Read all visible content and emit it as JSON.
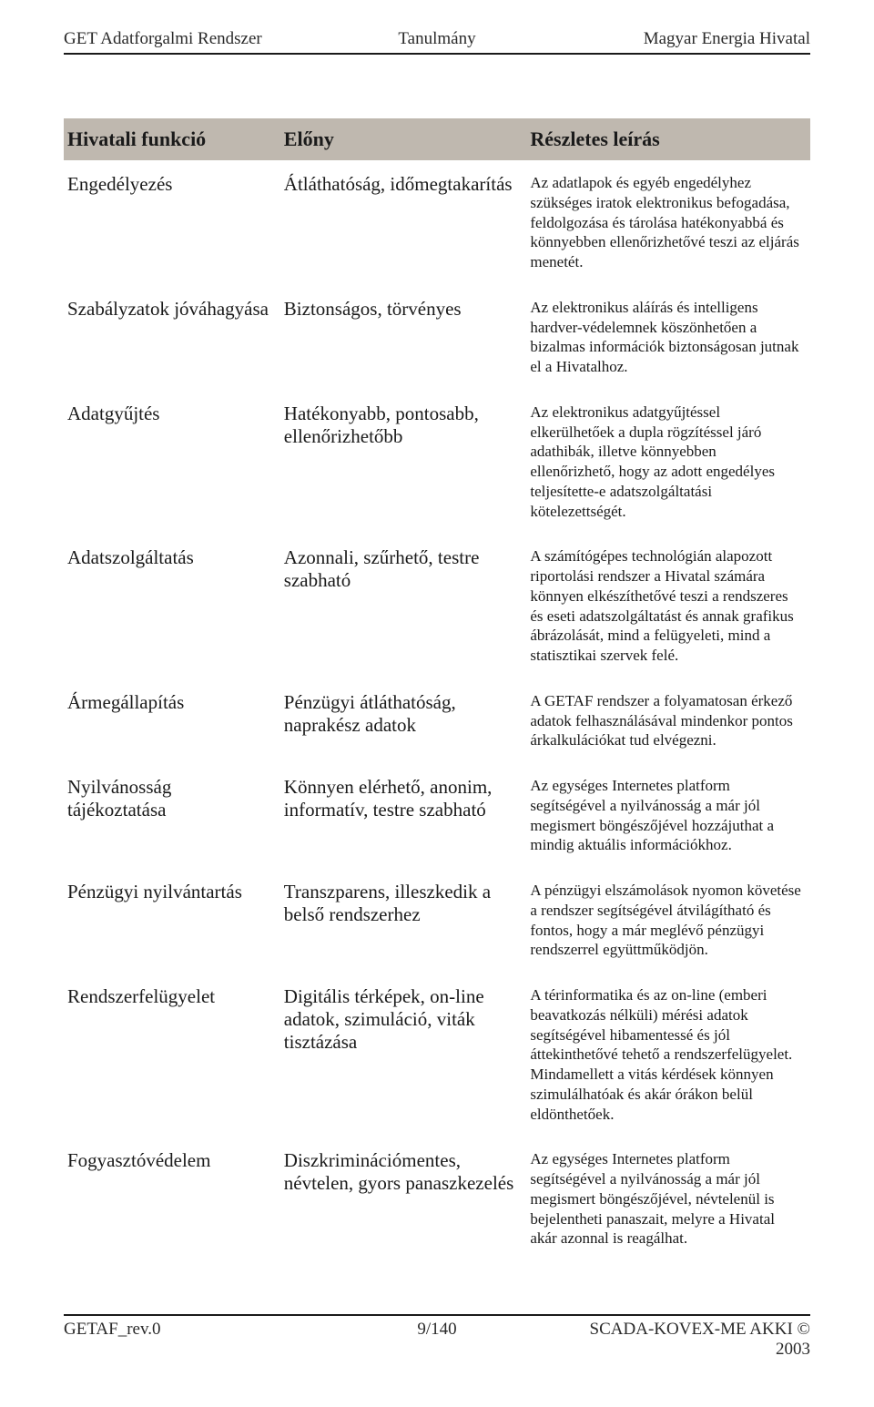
{
  "header": {
    "left": "GET Adatforgalmi Rendszer",
    "center": "Tanulmány",
    "right": "Magyar Energia Hivatal"
  },
  "footer": {
    "left": "GETAF_rev.0",
    "center": "9/140",
    "right": "SCADA-KOVEX-ME AKKI © 2003"
  },
  "table": {
    "columns": [
      "Hivatali funkció",
      "Előny",
      "Részletes leírás"
    ],
    "rows": [
      {
        "funkcio": "Engedélyezés",
        "elony": "Átláthatóság, időmegtakarítás",
        "leiras": "Az adatlapok és egyéb engedélyhez szükséges iratok elektronikus befogadása, feldolgozása és tárolása hatékonyabbá és könnyebben ellenőrizhetővé teszi az eljárás menetét."
      },
      {
        "funkcio": "Szabályzatok jóváhagyása",
        "elony": "Biztonságos, törvényes",
        "leiras": "Az elektronikus aláírás és intelligens hardver-védelemnek köszönhetően a bizalmas információk biztonságosan jutnak el a Hivatalhoz."
      },
      {
        "funkcio": "Adatgyűjtés",
        "elony": "Hatékonyabb, pontosabb, ellenőrizhetőbb",
        "leiras": "Az elektronikus adatgyűjtéssel elkerülhetőek a dupla rögzítéssel járó adathibák, illetve könnyebben ellenőrizhető, hogy az adott engedélyes teljesítette-e adatszolgáltatási kötelezettségét."
      },
      {
        "funkcio": "Adatszolgáltatás",
        "elony": "Azonnali, szűrhető, testre szabható",
        "leiras": "A számítógépes technológián alapozott riportolási rendszer a Hivatal számára könnyen elkészíthetővé teszi a rendszeres és eseti adatszolgáltatást és annak grafikus ábrázolását, mind a felügyeleti, mind a statisztikai szervek felé."
      },
      {
        "funkcio": "Ármegállapítás",
        "elony": "Pénzügyi átláthatóság, naprakész adatok",
        "leiras": "A GETAF rendszer a folyamatosan érkező adatok felhasználásával mindenkor pontos árkalkulációkat tud elvégezni."
      },
      {
        "funkcio": "Nyilvánosság tájékoztatása",
        "elony": "Könnyen elérhető, anonim, informatív, testre szabható",
        "leiras": "Az egységes Internetes platform segítségével a nyilvánosság a már jól megismert böngészőjével hozzájuthat a mindig aktuális információkhoz."
      },
      {
        "funkcio": "Pénzügyi nyilvántartás",
        "elony": "Transzparens, illeszkedik a belső rendszerhez",
        "leiras": "A pénzügyi elszámolások nyomon követése a rendszer segítségével átvilágítható és fontos, hogy a már meglévő pénzügyi rendszerrel együttműködjön."
      },
      {
        "funkcio": "Rendszerfelügyelet",
        "elony": "Digitális térképek, on-line adatok, szimuláció, viták tisztázása",
        "leiras": "A térinformatika és az on-line (emberi beavatkozás nélküli) mérési adatok segítségével hibamentessé és jól áttekinthetővé tehető a rendszerfelügyelet. Mindamellett a vitás kérdések könnyen szimulálhatóak és akár órákon belül eldönthetőek."
      },
      {
        "funkcio": "Fogyasztóvédelem",
        "elony": "Diszkriminációmentes, névtelen, gyors panaszkezelés",
        "leiras": "Az egységes Internetes platform segítségével a nyilvánosság a már jól megismert böngészőjével, névtelenül is bejelentheti panaszait, melyre a Hivatal akár azonnal is reagálhat."
      }
    ],
    "header_bg": "#bfb8af",
    "header_fontsize": 22,
    "col1_fontsize": 21,
    "col2_fontsize": 21,
    "col3_fontsize": 17,
    "rule_color": "#1a1a1a",
    "column_widths_pct": [
      29,
      33,
      38
    ]
  },
  "colors": {
    "background": "#ffffff",
    "text": "#1a1a1a",
    "header_text": "#2a2a2a"
  }
}
